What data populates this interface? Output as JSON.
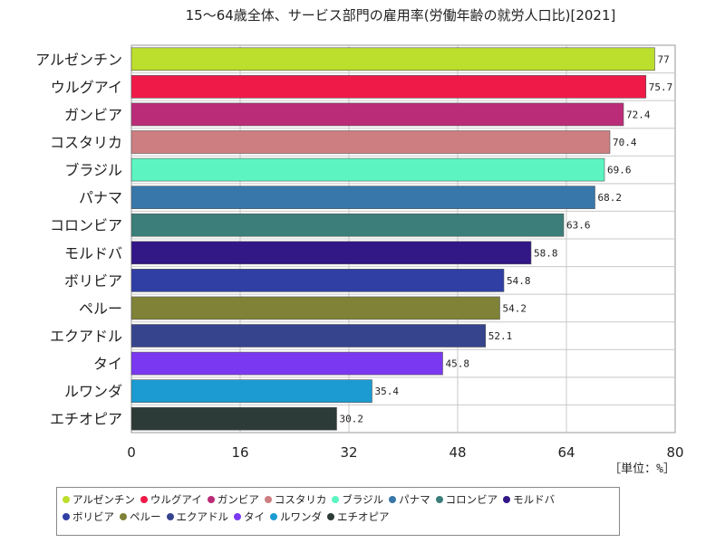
{
  "chart_data": {
    "type": "bar",
    "orientation": "horizontal",
    "title": "15〜64歳全体、サービス部門の雇用率(労働年齢の就労人口比)[2021]",
    "unit_label": "［単位：%］",
    "xlim": [
      0,
      80
    ],
    "xticks": [
      0,
      16,
      32,
      48,
      64,
      80
    ],
    "grid": true,
    "legend_position": "bottom",
    "categories": [
      "アルゼンチン",
      "ウルグアイ",
      "ガンビア",
      "コスタリカ",
      "ブラジル",
      "パナマ",
      "コロンビア",
      "モルドバ",
      "ボリビア",
      "ペルー",
      "エクアドル",
      "タイ",
      "ルワンダ",
      "エチオピア"
    ],
    "values": [
      77,
      75.7,
      72.4,
      70.4,
      69.6,
      68.2,
      63.6,
      58.8,
      54.8,
      54.2,
      52.1,
      45.8,
      35.4,
      30.2
    ],
    "colors": [
      "#bcde2c",
      "#ef1a48",
      "#bb2c78",
      "#cd7e80",
      "#5cf5c2",
      "#3877a9",
      "#3c7f7a",
      "#321786",
      "#2f3fa4",
      "#7f8237",
      "#36448e",
      "#7a38f0",
      "#1b9bd2",
      "#2c3b37"
    ]
  }
}
